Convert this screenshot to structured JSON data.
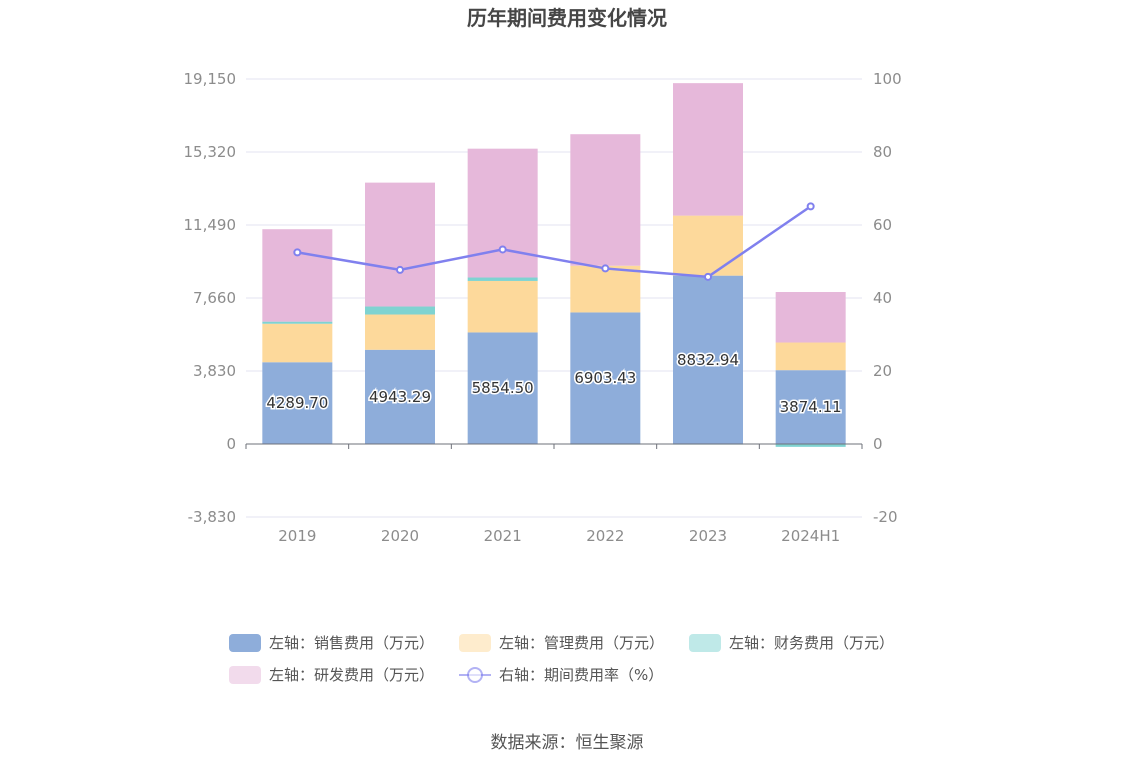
{
  "chart_data": {
    "type": "bar",
    "title": "历年期间费用变化情况",
    "categories": [
      "2019",
      "2020",
      "2021",
      "2022",
      "2023",
      "2024H1"
    ],
    "y_left": {
      "ticks": [
        -3830,
        0,
        3830,
        7660,
        11490,
        15320,
        19150
      ],
      "tick_labels": [
        "-3,830",
        "0",
        "3,830",
        "7,660",
        "11,490",
        "15,320",
        "19,150"
      ],
      "ylim": [
        -3830,
        19150
      ]
    },
    "y_right": {
      "ticks": [
        -20,
        0,
        20,
        40,
        60,
        80,
        100
      ],
      "tick_labels": [
        "-20",
        "0",
        "20",
        "40",
        "60",
        "80",
        "100"
      ],
      "ylim": [
        -20,
        100
      ]
    },
    "series": [
      {
        "name": "左轴：销售费用（万元）",
        "axis": "left",
        "kind": "bar",
        "color": "#8eadda",
        "values": [
          4289.7,
          4943.29,
          5854.5,
          6903.43,
          8832.94,
          3874.11
        ],
        "labels": [
          "4289.70",
          "4943.29",
          "5854.50",
          "6903.43",
          "8832.94",
          "3874.11"
        ]
      },
      {
        "name": "左轴：管理费用（万元）",
        "axis": "left",
        "kind": "bar",
        "color": "#fdd99b",
        "values": [
          2020,
          1850,
          2700,
          2450,
          3150,
          1450
        ]
      },
      {
        "name": "左轴：财务费用（万元）",
        "axis": "left",
        "kind": "bar",
        "color": "#7fd3d1",
        "values": [
          110,
          420,
          180,
          -20,
          -30,
          -150
        ]
      },
      {
        "name": "左轴：研发费用（万元）",
        "axis": "left",
        "kind": "bar",
        "color": "#e6b8da",
        "values": [
          4850,
          6500,
          6760,
          6900,
          6950,
          2650
        ]
      },
      {
        "name": "右轴：期间费用率（%）",
        "axis": "right",
        "kind": "line",
        "color": "#8080ee",
        "values": [
          52.5,
          47.7,
          53.3,
          48.1,
          45.8,
          65.1
        ]
      }
    ],
    "legend": {
      "position": "bottom"
    },
    "source": "数据来源：恒生聚源"
  }
}
